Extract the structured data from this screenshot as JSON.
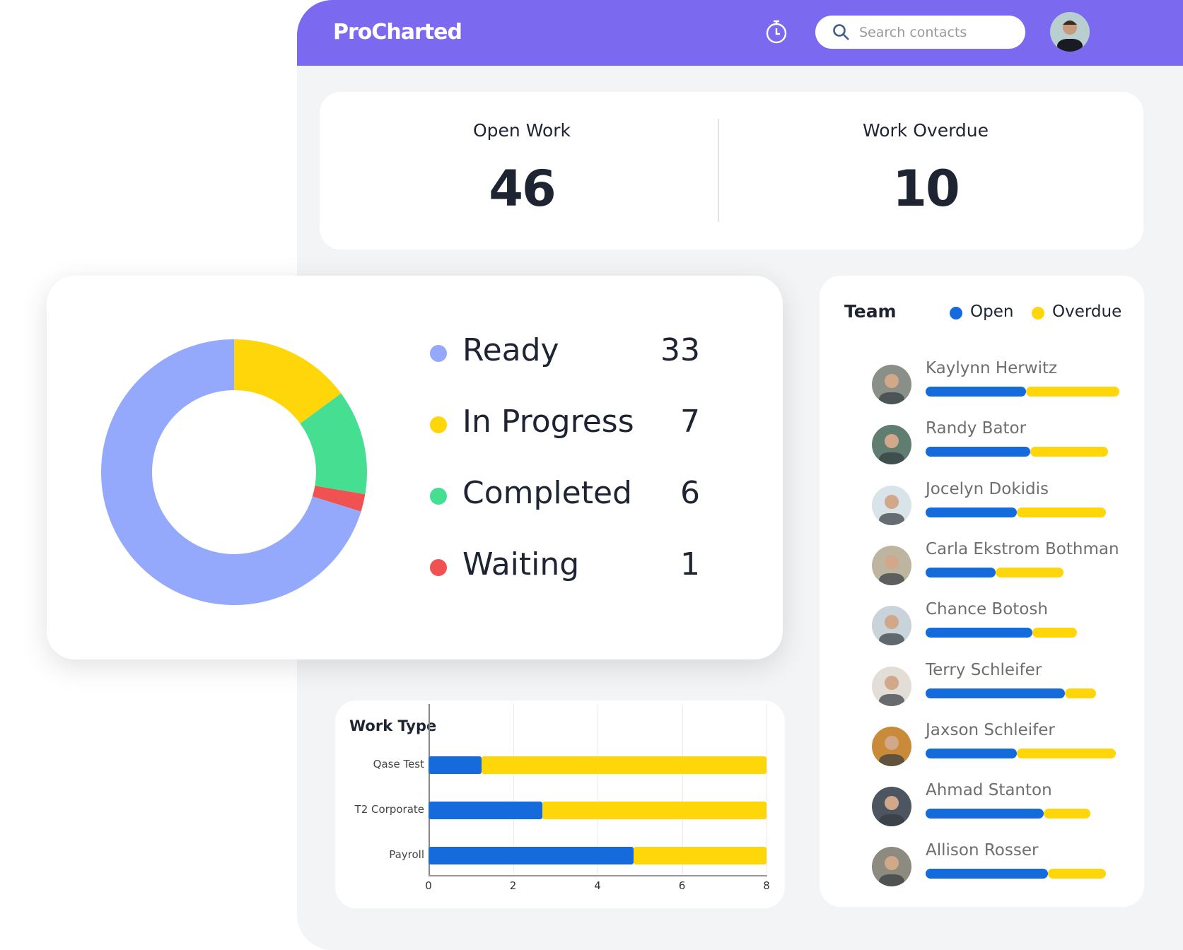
{
  "colors": {
    "header": "#7b69f0",
    "open": "#156bdb",
    "overdue": "#ffd60a",
    "ready": "#94a8fc",
    "in_progress": "#ffd60a",
    "completed": "#46df91",
    "waiting": "#f05252"
  },
  "header": {
    "logo": "ProCharted",
    "timer_icon": "stopwatch-icon",
    "search_placeholder": "Search contacts",
    "search_icon": "search-icon"
  },
  "stats": [
    {
      "label": "Open Work",
      "value": "46"
    },
    {
      "label": "Work Overdue",
      "value": "10"
    }
  ],
  "status": {
    "items": [
      {
        "label": "Ready",
        "value": 33,
        "color": "#94a8fc"
      },
      {
        "label": "In Progress",
        "value": 7,
        "color": "#ffd60a"
      },
      {
        "label": "Completed",
        "value": 6,
        "color": "#46df91"
      },
      {
        "label": "Waiting",
        "value": 1,
        "color": "#f05252"
      }
    ]
  },
  "team": {
    "title": "Team",
    "legend": [
      "Open",
      "Overdue"
    ],
    "members": [
      {
        "name": "Kaylynn Herwitz",
        "open": 0.52,
        "overdue": 0.48
      },
      {
        "name": "Randy Bator",
        "open": 0.54,
        "overdue": 0.4
      },
      {
        "name": "Jocelyn Dokidis",
        "open": 0.47,
        "overdue": 0.46
      },
      {
        "name": "Carla Ekstrom Bothman",
        "open": 0.36,
        "overdue": 0.35
      },
      {
        "name": "Chance Botosh",
        "open": 0.55,
        "overdue": 0.23
      },
      {
        "name": "Terry Schleifer",
        "open": 0.72,
        "overdue": 0.16
      },
      {
        "name": "Jaxson Schleifer",
        "open": 0.47,
        "overdue": 0.51
      },
      {
        "name": "Ahmad Stanton",
        "open": 0.61,
        "overdue": 0.24
      },
      {
        "name": "Allison Rosser",
        "open": 0.63,
        "overdue": 0.3
      }
    ]
  },
  "chart_data": {
    "type": "bar",
    "orientation": "horizontal",
    "stacked": true,
    "title": "Work Type",
    "categories": [
      "Qase Test",
      "T2 Corporate",
      "Payroll"
    ],
    "series": [
      {
        "name": "Open",
        "values": [
          1.25,
          2.7,
          4.85
        ]
      },
      {
        "name": "Overdue",
        "values": [
          6.75,
          5.3,
          3.15
        ]
      }
    ],
    "xlim": [
      0,
      8
    ],
    "xticks": [
      "0",
      "2",
      "4",
      "6",
      "8"
    ],
    "grid": true
  }
}
